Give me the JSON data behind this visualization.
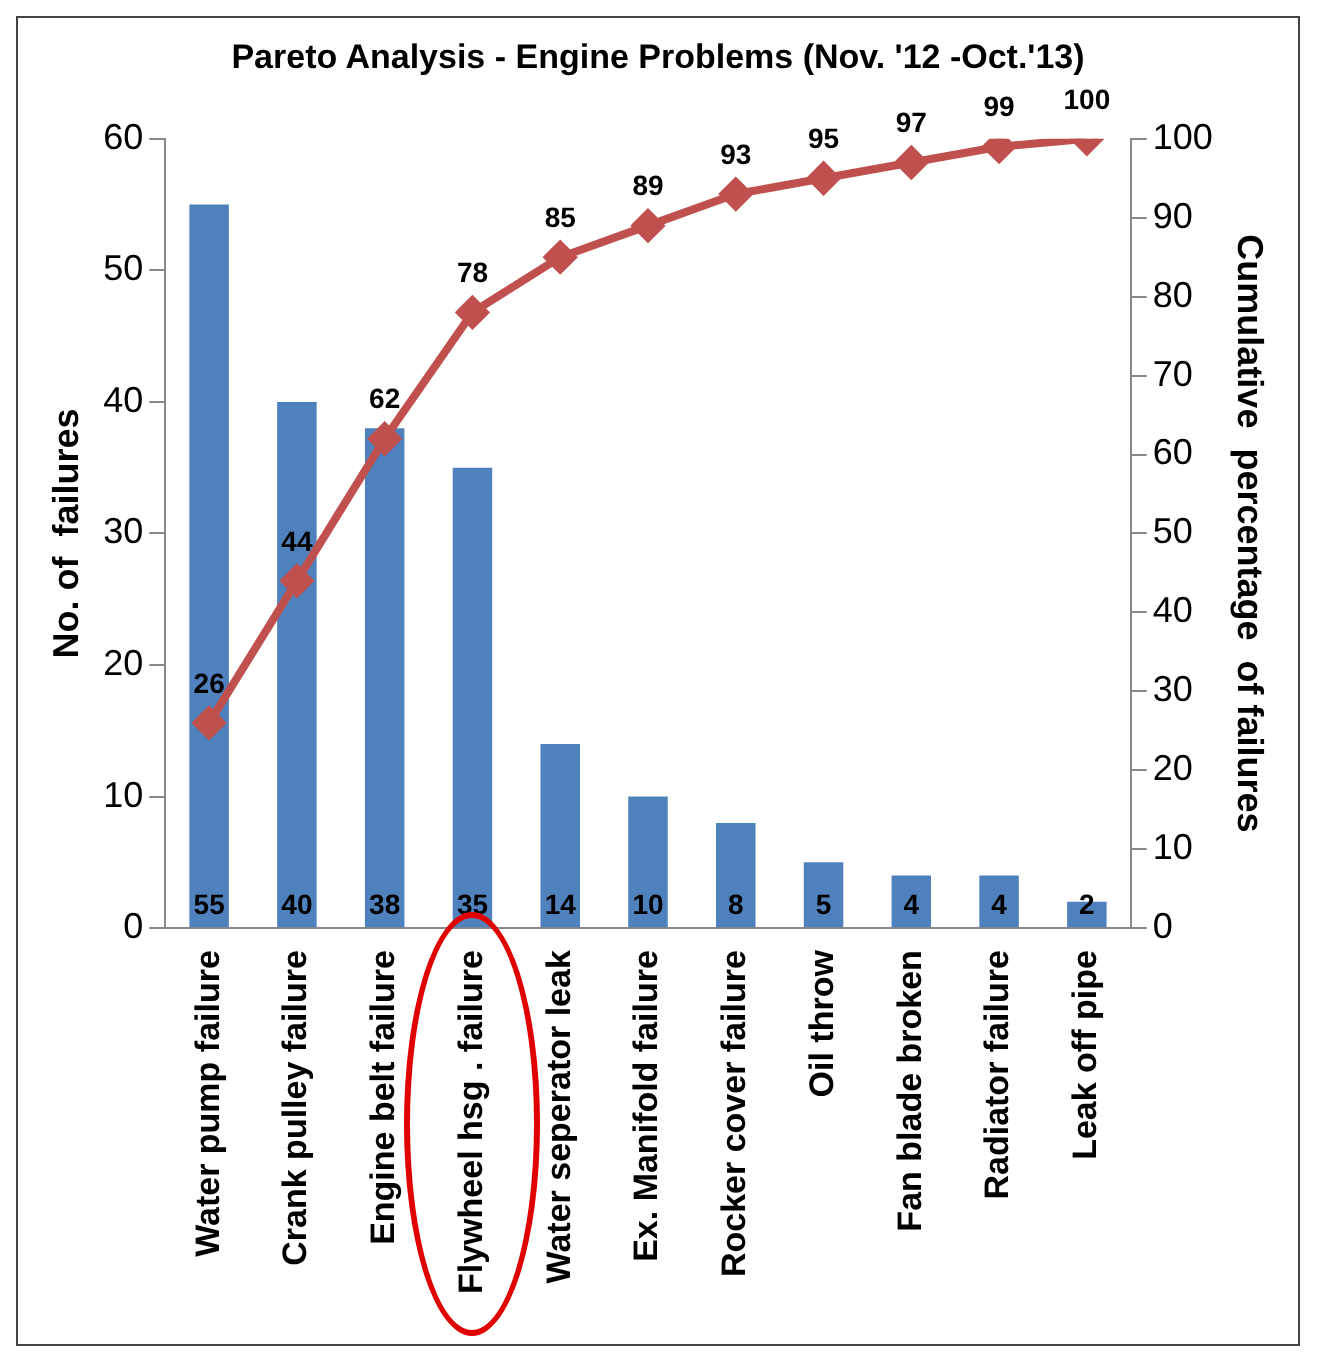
{
  "chart_data": {
    "type": "bar",
    "title": "Pareto Analysis - Engine Problems (Nov. '12 -Oct.'13)",
    "ylabel": "No. of  failures",
    "y2label": "Cumulative  percentage  of failures",
    "categories": [
      "Water pump failure",
      "Crank pulley failure",
      "Engine belt failure",
      "Flywheel hsg . failure",
      "Water seperator leak",
      "Ex. Manifold failure",
      "Rocker cover failure",
      "Oil throw",
      "Fan blade broken",
      "Radiator failure",
      "Leak off pipe"
    ],
    "series": [
      {
        "color": "#4f81bd",
        "values": [
          55,
          40,
          38,
          35,
          14,
          10,
          8,
          5,
          4,
          4,
          2
        ]
      },
      {
        "type": "line",
        "axis": "y2",
        "color": "#c0504d",
        "values": [
          26,
          44,
          62,
          78,
          85,
          89,
          93,
          95,
          97,
          99,
          100
        ]
      }
    ],
    "ylim": [
      0,
      60
    ],
    "yticks": [
      0,
      10,
      20,
      30,
      40,
      50,
      60
    ],
    "y2lim": [
      0,
      100
    ],
    "y2ticks": [
      0,
      10,
      20,
      30,
      40,
      50,
      60,
      70,
      80,
      90,
      100
    ],
    "data_labels": true,
    "marker": "diamond",
    "grid": false,
    "legend": false
  }
}
